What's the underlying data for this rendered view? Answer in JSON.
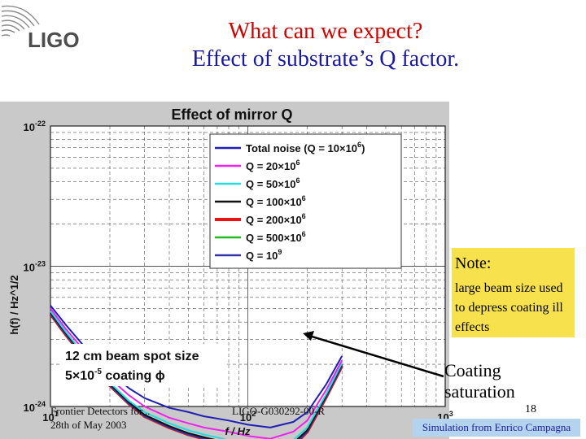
{
  "slide": {
    "title_line1": "What can we expect?",
    "title_line2": "Effect of substrate’s Q factor.",
    "logo_text": "LIGO",
    "note_heading": "Note:",
    "note_body": "large beam size used to depress coating ill effects",
    "coating_line1": "Coating",
    "coating_line2": "saturation",
    "page_number": "18",
    "simulation_credit": "Simulation from Enrico Campagna",
    "footer_left_line1": "Frontier Detectors for...",
    "footer_left_line2": "28th of May 2003",
    "footer_center": "LIGO-G030292-00-R"
  },
  "chart_data": {
    "type": "line",
    "title": "Effect of mirror Q",
    "xlabel": "f / Hz",
    "ylabel": "h(f) / Hz^1/2",
    "x_scale": "log",
    "y_scale": "log",
    "xlim": [
      10,
      1000
    ],
    "ylim_exponent": [
      -24,
      -22
    ],
    "x_tick_labels": [
      {
        "base": "10",
        "exp": "1",
        "value": 10
      },
      {
        "base": "10",
        "exp": "2",
        "value": 100
      },
      {
        "base": "10",
        "exp": "3",
        "value": 1000
      }
    ],
    "y_tick_labels": [
      {
        "base": "10",
        "exp": "-22",
        "value": -22
      },
      {
        "base": "10",
        "exp": "-23",
        "value": -23
      },
      {
        "base": "10",
        "exp": "-24",
        "value": -24
      }
    ],
    "annotation_line1": "12 cm beam spot size",
    "annotation_line2_prefix": "5×10",
    "annotation_line2_exp": "-5",
    "annotation_line2_suffix": " coating ϕ",
    "grid": true,
    "legend_position": "top-right",
    "x": [
      10,
      12,
      15,
      20,
      25,
      30,
      40,
      50,
      60,
      80,
      100,
      130,
      170,
      200,
      250,
      300
    ],
    "series": [
      {
        "name": "Total noise (Q = 10×10^6)",
        "color": "#1f1fb5",
        "width": 2,
        "log_values": [
          -23.28,
          -23.42,
          -23.58,
          -23.75,
          -23.87,
          -23.94,
          -24.01,
          -24.04,
          -24.07,
          -24.1,
          -24.13,
          -24.15,
          -24.11,
          -24.04,
          -23.84,
          -23.64
        ]
      },
      {
        "name": "Q = 20×10^6",
        "color": "#ee22ee",
        "width": 2,
        "log_values": [
          -23.3,
          -23.45,
          -23.61,
          -23.8,
          -23.92,
          -24.0,
          -24.08,
          -24.12,
          -24.15,
          -24.18,
          -24.21,
          -24.23,
          -24.18,
          -24.1,
          -23.88,
          -23.67
        ]
      },
      {
        "name": "Q = 50×10^6",
        "color": "#22dddd",
        "width": 2,
        "log_values": [
          -23.32,
          -23.47,
          -23.64,
          -23.83,
          -23.96,
          -24.04,
          -24.12,
          -24.17,
          -24.2,
          -24.24,
          -24.27,
          -24.29,
          -24.24,
          -24.15,
          -23.91,
          -23.69
        ]
      },
      {
        "name": "Q = 100×10^6",
        "color": "#111111",
        "width": 2,
        "log_values": [
          -23.33,
          -23.48,
          -23.65,
          -23.84,
          -23.97,
          -24.06,
          -24.14,
          -24.19,
          -24.22,
          -24.26,
          -24.29,
          -24.31,
          -24.26,
          -24.17,
          -23.92,
          -23.7
        ]
      },
      {
        "name": "Q = 200×10^6",
        "color": "#ee1111",
        "width": 4,
        "log_values": [
          -23.34,
          -23.49,
          -23.66,
          -23.85,
          -23.98,
          -24.07,
          -24.15,
          -24.2,
          -24.23,
          -24.27,
          -24.3,
          -24.33,
          -24.28,
          -24.18,
          -23.93,
          -23.71
        ]
      },
      {
        "name": "Q = 500×10^6",
        "color": "#22bb22",
        "width": 2,
        "log_values": [
          -23.34,
          -23.49,
          -23.66,
          -23.85,
          -23.98,
          -24.07,
          -24.15,
          -24.2,
          -24.23,
          -24.27,
          -24.3,
          -24.32,
          -24.27,
          -24.18,
          -23.93,
          -23.71
        ]
      },
      {
        "name": "Q = 10^9",
        "color": "#3333aa",
        "width": 2,
        "log_values": [
          -23.34,
          -23.49,
          -23.66,
          -23.85,
          -23.98,
          -24.07,
          -24.15,
          -24.2,
          -24.23,
          -24.27,
          -24.3,
          -24.33,
          -24.28,
          -24.18,
          -23.93,
          -23.71
        ]
      }
    ],
    "legend_entries": [
      {
        "text": "Total noise (Q = 10×10",
        "sup": "6",
        "tail": ")"
      },
      {
        "text": "Q = 20×10",
        "sup": "6",
        "tail": ""
      },
      {
        "text": "Q = 50×10",
        "sup": "6",
        "tail": ""
      },
      {
        "text": "Q = 100×10",
        "sup": "6",
        "tail": ""
      },
      {
        "text": "Q = 200×10",
        "sup": "6",
        "tail": ""
      },
      {
        "text": "Q = 500×10",
        "sup": "6",
        "tail": ""
      },
      {
        "text": "Q = 10",
        "sup": "9",
        "tail": ""
      }
    ]
  }
}
